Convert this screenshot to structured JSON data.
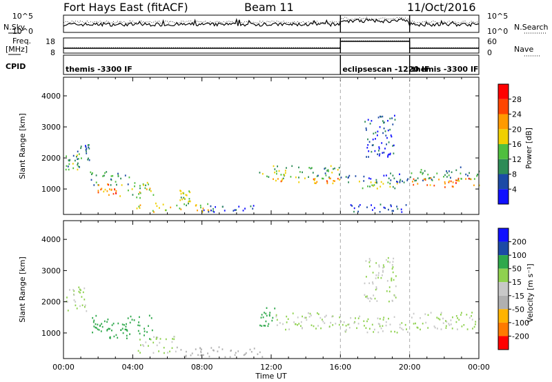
{
  "header": {
    "station": "Fort Hays East (fitACF)",
    "beam": "Beam 11",
    "date": "11/Oct/2016"
  },
  "top_panels": {
    "nsky_label": "N.Sky",
    "nsearch_label": "N.Search",
    "noise_ticks": [
      "10^5",
      "10^0"
    ],
    "freq_label": "Freq.",
    "freq_unit": "[MHz]",
    "freq_ticks": [
      "18",
      "8"
    ],
    "nave_label": "Nave",
    "nave_ticks": [
      "60",
      "0"
    ],
    "cpid_label": "CPID",
    "modes": [
      {
        "name": "themis -3300 IF",
        "start": 0,
        "end": 16
      },
      {
        "name": "eclipsescan -1220 IF",
        "start": 16,
        "end": 20
      },
      {
        "name": "themis -3300 IF",
        "start": 20,
        "end": 24
      }
    ]
  },
  "colors": {
    "power": [
      "#1010ff",
      "#1c4aa6",
      "#2e8b57",
      "#4fbf3f",
      "#f0d000",
      "#ff9a00",
      "#ff4500",
      "#ff0000"
    ],
    "velocity": [
      "#ff0000",
      "#ff7a00",
      "#ffb300",
      "#b0b0b0",
      "#c8c8c8",
      "#8fd14f",
      "#2ea84b",
      "#1c4aa6",
      "#1010ff"
    ]
  },
  "chart_data": [
    {
      "type": "heatmap",
      "name": "power",
      "ylabel": "Slant Range [km]",
      "xlabel": "",
      "x_ticks": [
        "00:00",
        "04:00",
        "08:00",
        "12:00",
        "16:00",
        "20:00",
        "00:00"
      ],
      "xlim_hours": [
        0,
        24
      ],
      "y_ticks": [
        1000,
        2000,
        3000,
        4000
      ],
      "ylim": [
        180,
        4600
      ],
      "colorbar_label": "Power [dB]",
      "colorbar_ticks": [
        4,
        8,
        12,
        16,
        20,
        24,
        28
      ],
      "colorbar_range": [
        0,
        30
      ],
      "regions": [
        {
          "h0": 0.1,
          "h1": 0.9,
          "r0": 1600,
          "r1": 2100,
          "value": 12
        },
        {
          "h0": 0.7,
          "h1": 1.5,
          "r0": 1900,
          "r1": 2500,
          "value": 8
        },
        {
          "h0": 1.5,
          "h1": 3.8,
          "r0": 1100,
          "r1": 1550,
          "value": 10
        },
        {
          "h0": 1.8,
          "h1": 3.2,
          "r0": 800,
          "r1": 1150,
          "value": 22
        },
        {
          "h0": 3.2,
          "h1": 5.2,
          "r0": 700,
          "r1": 1200,
          "value": 15
        },
        {
          "h0": 4.2,
          "h1": 8.5,
          "r0": 250,
          "r1": 550,
          "value": 16
        },
        {
          "h0": 6.7,
          "h1": 7.3,
          "r0": 550,
          "r1": 950,
          "value": 14
        },
        {
          "h0": 8.0,
          "h1": 11.0,
          "r0": 250,
          "r1": 500,
          "value": 6
        },
        {
          "h0": 11.3,
          "h1": 16.0,
          "r0": 1300,
          "r1": 1750,
          "value": 12
        },
        {
          "h0": 11.6,
          "h1": 16.0,
          "r0": 1150,
          "r1": 1350,
          "value": 20
        },
        {
          "h0": 16.0,
          "h1": 20.0,
          "r0": 1200,
          "r1": 1500,
          "value": 6
        },
        {
          "h0": 16.8,
          "h1": 19.5,
          "r0": 1000,
          "r1": 1250,
          "value": 14
        },
        {
          "h0": 16.5,
          "h1": 19.8,
          "r0": 200,
          "r1": 500,
          "value": 4
        },
        {
          "h0": 17.3,
          "h1": 19.2,
          "r0": 2000,
          "r1": 3400,
          "value": 5
        },
        {
          "h0": 20.0,
          "h1": 24.0,
          "r0": 1250,
          "r1": 1700,
          "value": 10
        },
        {
          "h0": 20.0,
          "h1": 24.0,
          "r0": 1050,
          "r1": 1350,
          "value": 22
        }
      ]
    },
    {
      "type": "heatmap",
      "name": "velocity",
      "ylabel": "Slant Range [km]",
      "xlabel": "Time UT",
      "x_ticks": [
        "00:00",
        "04:00",
        "08:00",
        "12:00",
        "16:00",
        "20:00",
        "00:00"
      ],
      "xlim_hours": [
        0,
        24
      ],
      "y_ticks": [
        1000,
        2000,
        3000,
        4000
      ],
      "ylim": [
        180,
        4600
      ],
      "colorbar_label": "Velocity [m s⁻¹]",
      "colorbar_ticks": [
        200,
        100,
        50,
        15,
        -15,
        -50,
        -100,
        -200
      ],
      "regions": [
        {
          "h0": 0.1,
          "h1": 1.3,
          "r0": 1600,
          "r1": 2500,
          "value": 0
        },
        {
          "h0": 1.5,
          "h1": 5.2,
          "r0": 800,
          "r1": 1550,
          "value": 40
        },
        {
          "h0": 4.2,
          "h1": 6.5,
          "r0": 350,
          "r1": 900,
          "value": 0
        },
        {
          "h0": 6.5,
          "h1": 11.5,
          "r0": 220,
          "r1": 550,
          "value": -40
        },
        {
          "h0": 11.3,
          "h1": 12.2,
          "r0": 1200,
          "r1": 1800,
          "value": 40
        },
        {
          "h0": 12.2,
          "h1": 16.0,
          "r0": 1100,
          "r1": 1650,
          "value": 0
        },
        {
          "h0": 16.0,
          "h1": 20.0,
          "r0": 1000,
          "r1": 1550,
          "value": 0
        },
        {
          "h0": 17.3,
          "h1": 19.2,
          "r0": 2000,
          "r1": 3400,
          "value": 0
        },
        {
          "h0": 20.0,
          "h1": 24.0,
          "r0": 1100,
          "r1": 1650,
          "value": 0
        }
      ]
    }
  ]
}
